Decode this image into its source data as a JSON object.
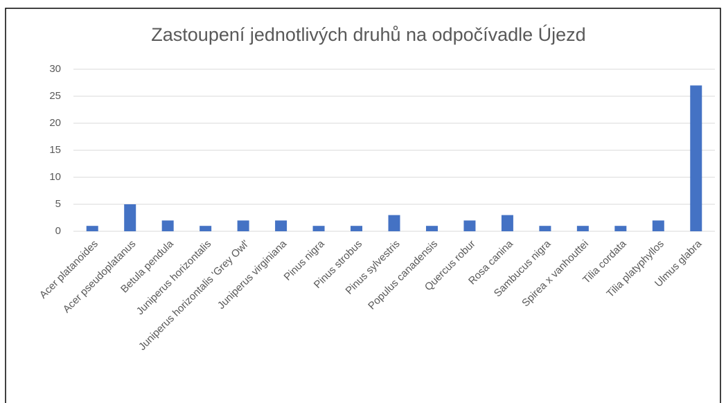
{
  "chart_data": {
    "type": "bar",
    "title": "Zastoupení jednotlivých druhů na odpočívadle Újezd",
    "categories": [
      "Acer platanoides",
      "Acer pseudoplatanus",
      "Betula pendula",
      "Juniperus horizontalis",
      "Juniperus horizontalis 'Grey Owl'",
      "Juniperus virginiana",
      "Pinus nigra",
      "Pinus strobus",
      "Pinus sylvestris",
      "Populus canadensis",
      "Quercus robur",
      "Rosa canina",
      "Sambucus nigra",
      "Spirea x vanhouttei",
      "Tilia cordata",
      "Tilia platyphyllos",
      "Ulmus glabra"
    ],
    "values": [
      1,
      5,
      2,
      1,
      2,
      2,
      1,
      1,
      3,
      1,
      2,
      3,
      1,
      1,
      1,
      2,
      27
    ],
    "color": "#4472c4",
    "ylim": [
      0,
      30
    ],
    "yticks": [
      0,
      5,
      10,
      15,
      20,
      25,
      30
    ],
    "grid": true
  }
}
